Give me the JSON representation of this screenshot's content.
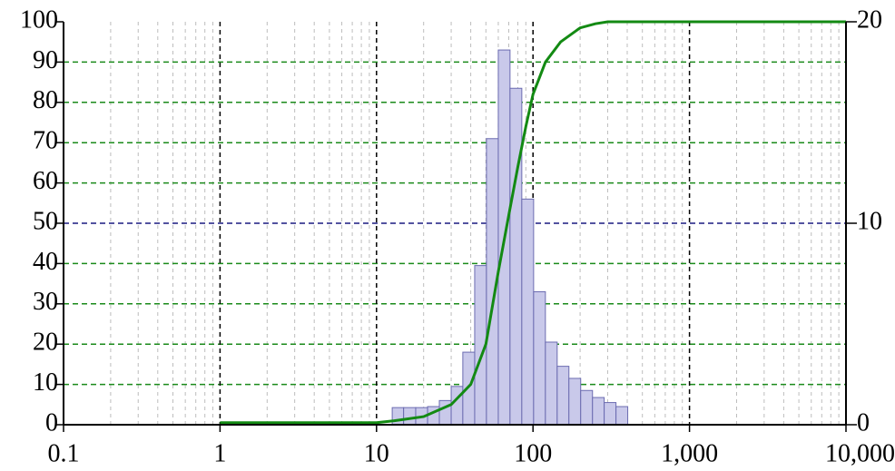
{
  "chart_data": {
    "type": "histogram",
    "xlog": true,
    "xlim": [
      0.1,
      10000
    ],
    "xticks": [
      0.1,
      1,
      10,
      100,
      {
        "value": 1000,
        "label": "1,000"
      },
      {
        "value": 10000,
        "label": "10,000"
      }
    ],
    "ylim": [
      0,
      100
    ],
    "yticks": [
      0,
      10,
      20,
      30,
      40,
      50,
      60,
      70,
      80,
      90,
      100
    ],
    "y2lim": [
      0,
      20
    ],
    "y2ticks": [
      0,
      10,
      20
    ],
    "grid": true,
    "minor_grid": true,
    "bins": [
      12.6,
      14.9,
      17.8,
      21.2,
      25.2,
      30,
      35.6,
      42.4,
      50.4,
      60,
      71.3,
      84.8,
      100.9,
      120,
      142.7,
      169.6,
      201.7,
      240,
      285,
      339,
      403
    ],
    "counts": [
      0.85,
      0.85,
      0.85,
      0.9,
      1.2,
      1.9,
      3.6,
      7.9,
      14.2,
      18.6,
      16.7,
      11.2,
      6.6,
      4.1,
      2.9,
      2.3,
      1.7,
      1.35,
      1.1,
      0.9
    ],
    "bar_color": "#c9c9ea",
    "bar_edge": "#6b6bb0",
    "line": {
      "x": [
        1,
        10,
        13,
        20,
        30,
        40,
        50,
        60,
        70,
        80,
        90,
        100,
        120,
        150,
        200,
        250,
        300,
        400,
        1000,
        10000
      ],
      "y": [
        0.5,
        0.5,
        1,
        2,
        5,
        10,
        20,
        38,
        52,
        64,
        74,
        82,
        90,
        95,
        98.5,
        99.5,
        100,
        100,
        100,
        100
      ],
      "color": "#138a13"
    }
  }
}
